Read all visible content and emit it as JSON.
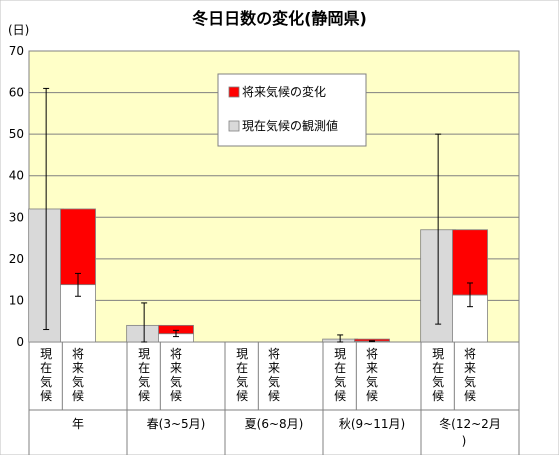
{
  "chart_data": {
    "type": "bar",
    "title": "冬日日数の変化(静岡県)",
    "ylabel": "(日)",
    "ylim": [
      0,
      70
    ],
    "yticks": [
      0,
      10,
      20,
      30,
      40,
      50,
      60,
      70
    ],
    "grid": true,
    "plot_background": "#ffffc8",
    "legend": {
      "placement": "top-center",
      "items": [
        {
          "label": "将来気候の変化",
          "color": "#ff0000"
        },
        {
          "label": "現在気候の観測値",
          "color": "#d9d9d9"
        }
      ]
    },
    "bar_labels": {
      "current": "現在気候",
      "future": "将来気候"
    },
    "groups": [
      {
        "label": "年",
        "current": 32,
        "current_err": [
          3,
          61
        ],
        "future_base": 13.8,
        "future_change": 18.2,
        "future_err": [
          11,
          16.5
        ]
      },
      {
        "label": "春(3~5月)",
        "current": 4,
        "current_err": [
          0,
          9.4
        ],
        "future_base": 2,
        "future_change": 2,
        "future_err": [
          1.3,
          2.8
        ]
      },
      {
        "label": "夏(6~8月)",
        "current": 0,
        "current_err": null,
        "future_base": 0,
        "future_change": 0,
        "future_err": null
      },
      {
        "label": "秋(9~11月)",
        "current": 0.7,
        "current_err": [
          0,
          1.7
        ],
        "future_base": 0.2,
        "future_change": 0.5,
        "future_err": [
          0.1,
          0.3
        ]
      },
      {
        "label": "冬(12~2月)",
        "current": 27,
        "current_err": [
          4.3,
          50
        ],
        "future_base": 11.3,
        "future_change": 15.7,
        "future_err": [
          8.5,
          14.2
        ]
      }
    ],
    "colors": {
      "current": "#d9d9d9",
      "future_base": "#ffffff",
      "future_change": "#ff0000",
      "error_bar": "#000000"
    }
  }
}
